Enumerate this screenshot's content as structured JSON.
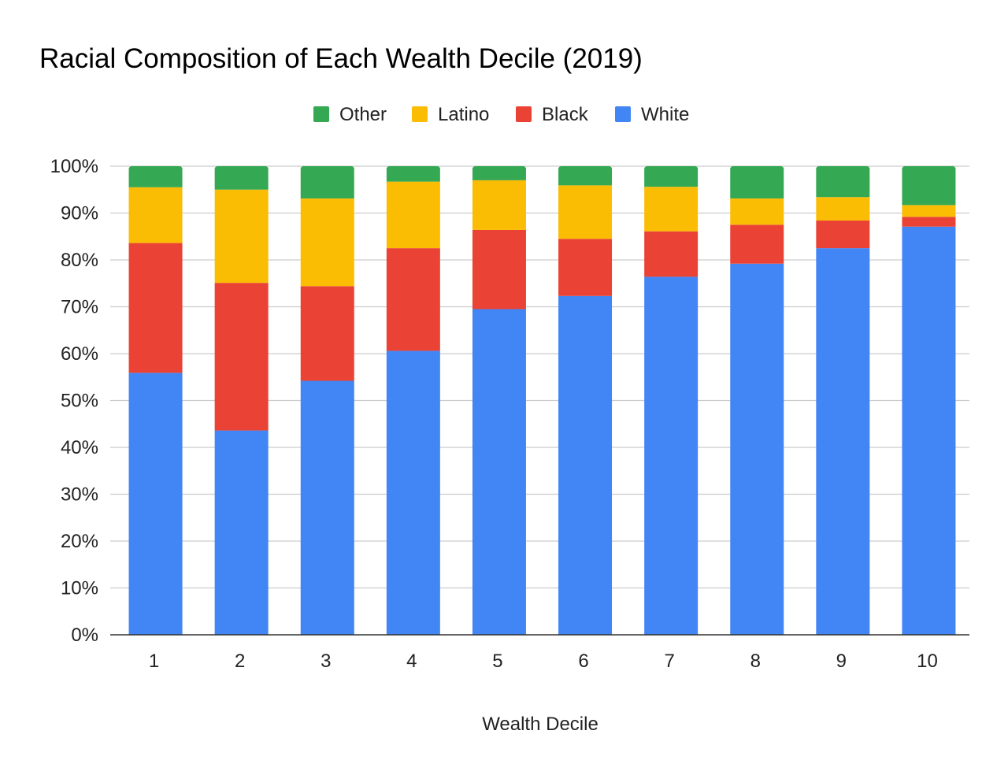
{
  "chart_data": {
    "type": "bar",
    "stacked": true,
    "percent_stacked": true,
    "title": "Racial Composition of Each Wealth Decile (2019)",
    "xlabel": "Wealth Decile",
    "ylabel": "",
    "ylim": [
      0,
      100
    ],
    "y_ticks": [
      "0%",
      "10%",
      "20%",
      "30%",
      "40%",
      "50%",
      "60%",
      "70%",
      "80%",
      "90%",
      "100%"
    ],
    "categories": [
      "1",
      "2",
      "3",
      "4",
      "5",
      "6",
      "7",
      "8",
      "9",
      "10"
    ],
    "legend_position": "top",
    "grid": true,
    "series": [
      {
        "name": "White",
        "color": "#4285f4",
        "values": [
          55.9,
          43.6,
          54.2,
          60.6,
          69.5,
          72.3,
          76.4,
          79.2,
          82.5,
          87.1
        ]
      },
      {
        "name": "Black",
        "color": "#ea4335",
        "values": [
          27.7,
          31.5,
          20.2,
          21.9,
          16.9,
          12.2,
          9.7,
          8.3,
          5.9,
          2.1
        ]
      },
      {
        "name": "Latino",
        "color": "#fbbc04",
        "values": [
          11.9,
          19.9,
          18.7,
          14.2,
          10.6,
          11.4,
          9.5,
          5.6,
          5.0,
          2.5
        ]
      },
      {
        "name": "Other",
        "color": "#34a853",
        "values": [
          4.5,
          5.0,
          6.9,
          3.3,
          3.0,
          4.1,
          4.4,
          6.9,
          6.6,
          8.3
        ]
      }
    ],
    "legend_order": [
      "Other",
      "Latino",
      "Black",
      "White"
    ]
  }
}
